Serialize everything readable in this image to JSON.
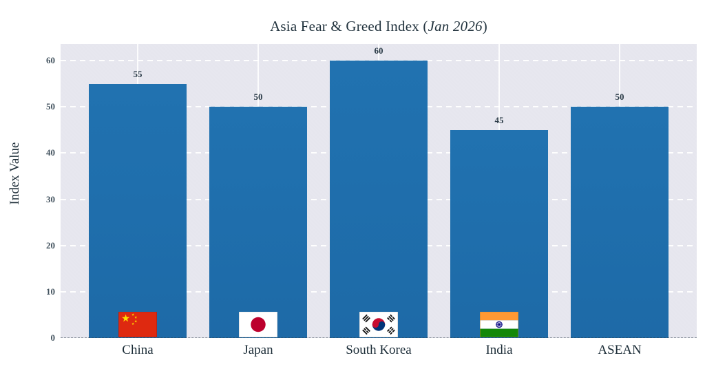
{
  "figure": {
    "title": {
      "prefix": "Asia Fear & Greed Index (",
      "emphasis": "Jan 2026",
      "suffix": ")"
    }
  },
  "chart_data": {
    "type": "bar",
    "title": "Asia Fear & Greed Index (Jan 2026)",
    "categories": [
      "China",
      "Japan",
      "South Korea",
      "India",
      "ASEAN"
    ],
    "values": [
      55,
      50,
      60,
      45,
      50
    ],
    "bar_labels": [
      "55",
      "50",
      "60",
      "45",
      "50"
    ],
    "flag_icons": [
      "china-flag-icon",
      "japan-flag-icon",
      "south-korea-flag-icon",
      "india-flag-icon",
      null
    ],
    "xlabel": "",
    "ylabel": "Index Value",
    "yticks": [
      0,
      10,
      20,
      30,
      40,
      50,
      60
    ],
    "ylim": [
      0,
      63.6
    ],
    "grid": {
      "horizontal": "dashed-white",
      "vertical": "solid-white-at-category-centers"
    },
    "legend": "none",
    "colors": {
      "bar": "#1f6fad",
      "plot_background": "#e6e6ee",
      "figure_background": "#ffffff",
      "gridline": "#ffffff",
      "title_text": "#21323d",
      "tick_text": "#41515d"
    }
  }
}
